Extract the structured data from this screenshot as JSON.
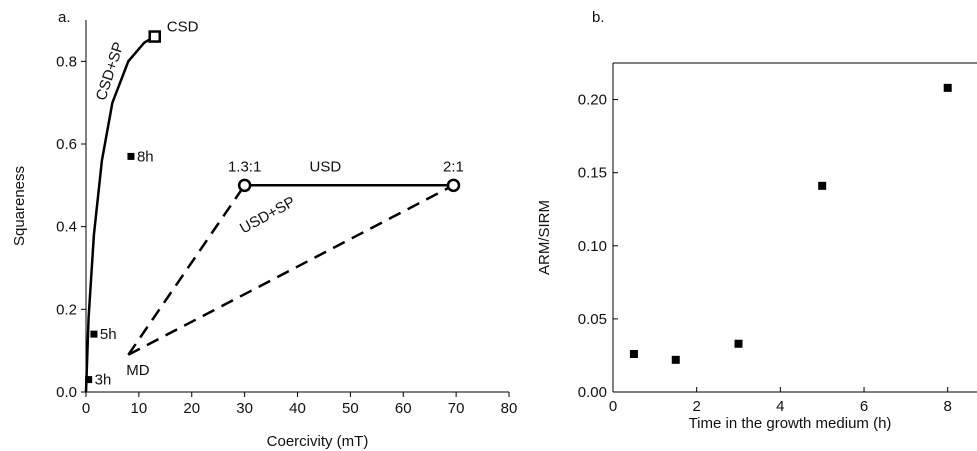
{
  "chart_data": [
    {
      "panel_label": "a.",
      "type": "line",
      "xlabel": "Coercivity (mT)",
      "ylabel": "Squareness",
      "xlim": [
        0,
        80
      ],
      "ylim": [
        0,
        0.9
      ],
      "xticks": [
        0,
        10,
        20,
        30,
        40,
        50,
        60,
        70,
        80
      ],
      "yticks": [
        0.0,
        0.2,
        0.4,
        0.6,
        0.8
      ],
      "ytick_labels": [
        "0.0",
        "0.2",
        "0.4",
        "0.6",
        "0.8"
      ],
      "grid": false,
      "curves": [
        {
          "label": "CSD+SP",
          "style": "solid",
          "x": [
            0,
            0.5,
            1.5,
            3,
            5,
            8,
            11,
            13
          ],
          "y": [
            0.0,
            0.18,
            0.38,
            0.56,
            0.7,
            0.8,
            0.845,
            0.86
          ]
        },
        {
          "label": "USD",
          "style": "solid",
          "x": [
            30,
            69.5
          ],
          "y": [
            0.5,
            0.5
          ]
        },
        {
          "label": "",
          "style": "dashed",
          "x": [
            8,
            30
          ],
          "y": [
            0.09,
            0.5
          ]
        },
        {
          "label": "USD+SP",
          "style": "dashed",
          "x": [
            8,
            69.5
          ],
          "y": [
            0.09,
            0.5
          ]
        }
      ],
      "markers": [
        {
          "label": "CSD",
          "shape": "square",
          "x": 13,
          "y": 0.86
        },
        {
          "label": "1.3:1",
          "shape": "circle",
          "x": 30,
          "y": 0.5
        },
        {
          "label": "2:1",
          "shape": "circle",
          "x": 69.5,
          "y": 0.5
        }
      ],
      "points": [
        {
          "label": "3h",
          "x": 0.5,
          "y": 0.03
        },
        {
          "label": "5h",
          "x": 1.5,
          "y": 0.14
        },
        {
          "label": "8h",
          "x": 8.5,
          "y": 0.57
        }
      ],
      "annotations": [
        {
          "text": "MD",
          "x": 8,
          "y": 0.09
        },
        {
          "text": "CSD+SP",
          "x": 5,
          "y": 0.7
        },
        {
          "text": "USD+SP",
          "x": 48,
          "y": 0.43
        },
        {
          "text": "USD",
          "x": 50,
          "y": 0.5
        }
      ]
    },
    {
      "panel_label": "b.",
      "type": "scatter",
      "xlabel": "Time in the growth medium (h)",
      "ylabel": "ARM/SIRM",
      "xlim": [
        0,
        8.7
      ],
      "ylim": [
        0,
        0.225
      ],
      "xticks": [
        0,
        2,
        4,
        6,
        8
      ],
      "yticks": [
        0.0,
        0.05,
        0.1,
        0.15,
        0.2
      ],
      "ytick_labels": [
        "0.00",
        "0.05",
        "0.10",
        "0.15",
        "0.20"
      ],
      "grid": false,
      "x": [
        0.5,
        1.5,
        3,
        5,
        8
      ],
      "y": [
        0.026,
        0.022,
        0.033,
        0.141,
        0.208
      ]
    }
  ]
}
